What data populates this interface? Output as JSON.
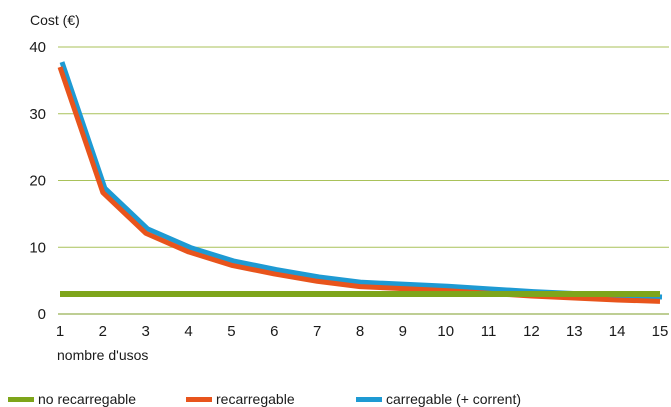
{
  "chart_data": {
    "type": "line",
    "ylabel": "Cost (€)",
    "xlabel": "nombre d'usos",
    "x": [
      1,
      2,
      3,
      4,
      5,
      6,
      7,
      8,
      9,
      10,
      11,
      12,
      13,
      14,
      15
    ],
    "ylim": [
      0,
      40
    ],
    "yticks": [
      0,
      10,
      20,
      30,
      40
    ],
    "grid": true,
    "legend_position": "bottom",
    "series": [
      {
        "name": "no recarregable",
        "color": "#7ea51a",
        "values": [
          3,
          3,
          3,
          3,
          3,
          3,
          3,
          3,
          3,
          3,
          3,
          3,
          3,
          3,
          3
        ]
      },
      {
        "name": "recarregable",
        "color": "#e8541c",
        "values": [
          37,
          18.2,
          12.1,
          9.3,
          7.3,
          6.0,
          4.9,
          4.1,
          3.8,
          3.5,
          3.1,
          2.7,
          2.4,
          2.1,
          1.9
        ]
      },
      {
        "name": "carregable (+ corrent)",
        "color": "#1e9ad3",
        "values": [
          37.6,
          18.7,
          12.6,
          9.8,
          7.8,
          6.5,
          5.4,
          4.6,
          4.3,
          4.0,
          3.6,
          3.2,
          2.9,
          2.6,
          2.4
        ]
      }
    ]
  }
}
